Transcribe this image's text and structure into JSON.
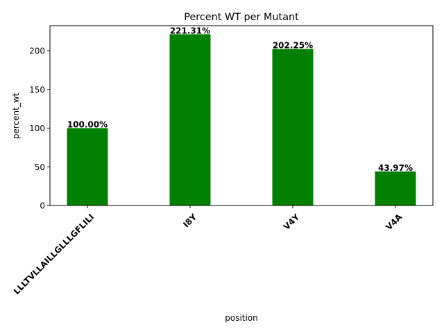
{
  "chart_data": {
    "type": "bar",
    "title": "Percent WT per Mutant",
    "xlabel": "position",
    "ylabel": "percent_wt",
    "categories": [
      "LLLTVLLAILLGLLLGFLILI",
      "I8Y",
      "V4Y",
      "V4A"
    ],
    "values": [
      100.0,
      221.31,
      202.25,
      43.97
    ],
    "value_labels": [
      "100.00%",
      "221.31%",
      "202.25%",
      "43.97%"
    ],
    "ylim": [
      0,
      232.4
    ],
    "yticks": [
      0,
      50,
      100,
      150,
      200
    ],
    "bar_color": "#008000",
    "grid": false,
    "legend": false
  }
}
